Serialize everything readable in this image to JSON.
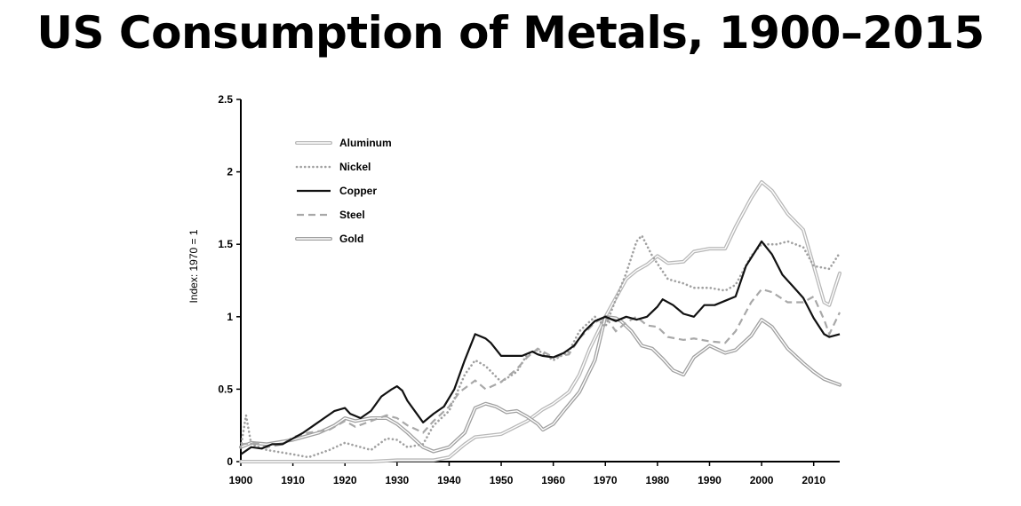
{
  "title": "US Consumption of Metals, 1900–2015",
  "chart_data": {
    "type": "line",
    "title": "US Consumption of Metals, 1900–2015",
    "xlabel": "",
    "ylabel": "Index: 1970 = 1",
    "xlim": [
      1900,
      2015
    ],
    "ylim": [
      0,
      2.5
    ],
    "x_ticks": [
      "1900",
      "1910",
      "1920",
      "1930",
      "1940",
      "1950",
      "1960",
      "1970",
      "1980",
      "1990",
      "2000",
      "2010"
    ],
    "y_ticks": [
      "0",
      "0.5",
      "1",
      "1.5",
      "2",
      "2.5"
    ],
    "grid": false,
    "legend_position": "top-left",
    "series": [
      {
        "name": "Aluminum",
        "style": "double",
        "color": "#b8b8b8",
        "x": [
          1900,
          1905,
          1910,
          1915,
          1920,
          1925,
          1930,
          1935,
          1937,
          1940,
          1943,
          1945,
          1950,
          1955,
          1958,
          1960,
          1963,
          1965,
          1967,
          1970,
          1972,
          1974,
          1976,
          1978,
          1980,
          1982,
          1985,
          1987,
          1990,
          1993,
          1995,
          1998,
          2000,
          2002,
          2005,
          2008,
          2010,
          2012,
          2013,
          2015
        ],
        "y": [
          0,
          0,
          0,
          0,
          0,
          0,
          0.01,
          0.01,
          0.01,
          0.03,
          0.12,
          0.17,
          0.19,
          0.28,
          0.36,
          0.4,
          0.48,
          0.6,
          0.78,
          1.0,
          1.13,
          1.26,
          1.32,
          1.36,
          1.42,
          1.37,
          1.38,
          1.45,
          1.47,
          1.47,
          1.62,
          1.82,
          1.93,
          1.87,
          1.71,
          1.6,
          1.35,
          1.1,
          1.08,
          1.3
        ]
      },
      {
        "name": "Nickel",
        "style": "dotted",
        "color": "#a0a0a0",
        "x": [
          1900,
          1901,
          1902,
          1905,
          1910,
          1913,
          1917,
          1920,
          1925,
          1928,
          1930,
          1932,
          1935,
          1937,
          1940,
          1943,
          1945,
          1947,
          1950,
          1953,
          1955,
          1957,
          1960,
          1963,
          1965,
          1968,
          1970,
          1972,
          1974,
          1976,
          1977,
          1979,
          1982,
          1985,
          1987,
          1990,
          1993,
          1995,
          1998,
          2000,
          2003,
          2005,
          2008,
          2010,
          2013,
          2015
        ],
        "y": [
          0.1,
          0.32,
          0.12,
          0.08,
          0.05,
          0.03,
          0.08,
          0.13,
          0.08,
          0.16,
          0.15,
          0.1,
          0.12,
          0.25,
          0.35,
          0.6,
          0.7,
          0.66,
          0.55,
          0.62,
          0.74,
          0.77,
          0.7,
          0.76,
          0.9,
          1.0,
          0.93,
          1.12,
          1.3,
          1.52,
          1.56,
          1.42,
          1.26,
          1.23,
          1.2,
          1.2,
          1.18,
          1.22,
          1.42,
          1.5,
          1.5,
          1.52,
          1.48,
          1.35,
          1.33,
          1.44
        ]
      },
      {
        "name": "Copper",
        "style": "solid",
        "color": "#111111",
        "x": [
          1900,
          1902,
          1904,
          1906,
          1908,
          1910,
          1912,
          1914,
          1916,
          1918,
          1920,
          1921,
          1923,
          1925,
          1927,
          1929,
          1930,
          1931,
          1932,
          1934,
          1935,
          1937,
          1939,
          1941,
          1943,
          1945,
          1947,
          1948,
          1950,
          1952,
          1954,
          1956,
          1957,
          1958,
          1960,
          1962,
          1964,
          1966,
          1968,
          1970,
          1972,
          1974,
          1976,
          1978,
          1980,
          1981,
          1983,
          1985,
          1987,
          1989,
          1991,
          1993,
          1995,
          1997,
          2000,
          2002,
          2004,
          2006,
          2008,
          2010,
          2012,
          2013,
          2015
        ],
        "y": [
          0.05,
          0.1,
          0.09,
          0.12,
          0.12,
          0.16,
          0.2,
          0.25,
          0.3,
          0.35,
          0.37,
          0.33,
          0.3,
          0.35,
          0.45,
          0.5,
          0.52,
          0.49,
          0.42,
          0.32,
          0.27,
          0.33,
          0.38,
          0.5,
          0.7,
          0.88,
          0.85,
          0.82,
          0.73,
          0.73,
          0.73,
          0.76,
          0.74,
          0.73,
          0.72,
          0.75,
          0.8,
          0.9,
          0.97,
          1.0,
          0.97,
          1.0,
          0.98,
          1.0,
          1.07,
          1.12,
          1.08,
          1.02,
          1.0,
          1.08,
          1.08,
          1.11,
          1.14,
          1.35,
          1.52,
          1.43,
          1.29,
          1.21,
          1.13,
          0.99,
          0.88,
          0.86,
          0.88
        ]
      },
      {
        "name": "Steel",
        "style": "dashed",
        "color": "#a8a8a8",
        "x": [
          1900,
          1903,
          1905,
          1908,
          1910,
          1913,
          1917,
          1920,
          1922,
          1925,
          1928,
          1930,
          1932,
          1935,
          1937,
          1940,
          1942,
          1945,
          1947,
          1950,
          1953,
          1955,
          1957,
          1960,
          1963,
          1965,
          1968,
          1970,
          1972,
          1974,
          1976,
          1978,
          1980,
          1982,
          1985,
          1987,
          1990,
          1993,
          1995,
          1998,
          2000,
          2002,
          2005,
          2008,
          2010,
          2012,
          2013,
          2015
        ],
        "y": [
          0.12,
          0.13,
          0.1,
          0.12,
          0.17,
          0.2,
          0.22,
          0.28,
          0.24,
          0.28,
          0.32,
          0.3,
          0.25,
          0.2,
          0.28,
          0.38,
          0.48,
          0.56,
          0.5,
          0.55,
          0.64,
          0.72,
          0.78,
          0.72,
          0.74,
          0.85,
          0.96,
          1.0,
          0.9,
          0.96,
          1.0,
          0.94,
          0.93,
          0.86,
          0.84,
          0.85,
          0.83,
          0.82,
          0.9,
          1.1,
          1.19,
          1.17,
          1.1,
          1.1,
          1.14,
          0.98,
          0.88,
          1.03
        ]
      },
      {
        "name": "Gold",
        "style": "double",
        "color": "#a0a0a0",
        "x": [
          1900,
          1902,
          1905,
          1910,
          1915,
          1918,
          1920,
          1922,
          1925,
          1928,
          1930,
          1932,
          1935,
          1937,
          1940,
          1943,
          1945,
          1947,
          1949,
          1951,
          1953,
          1955,
          1957,
          1958,
          1960,
          1962,
          1965,
          1968,
          1970,
          1972,
          1973,
          1975,
          1977,
          1979,
          1981,
          1983,
          1985,
          1987,
          1990,
          1993,
          1995,
          1998,
          2000,
          2002,
          2005,
          2008,
          2010,
          2012,
          2015
        ],
        "y": [
          0.1,
          0.13,
          0.12,
          0.15,
          0.2,
          0.25,
          0.3,
          0.28,
          0.3,
          0.3,
          0.26,
          0.2,
          0.1,
          0.07,
          0.1,
          0.2,
          0.37,
          0.4,
          0.38,
          0.34,
          0.35,
          0.31,
          0.26,
          0.22,
          0.26,
          0.35,
          0.48,
          0.7,
          1.0,
          0.99,
          0.97,
          0.9,
          0.8,
          0.78,
          0.71,
          0.63,
          0.6,
          0.72,
          0.8,
          0.75,
          0.77,
          0.87,
          0.98,
          0.93,
          0.78,
          0.68,
          0.62,
          0.57,
          0.53
        ]
      }
    ]
  }
}
